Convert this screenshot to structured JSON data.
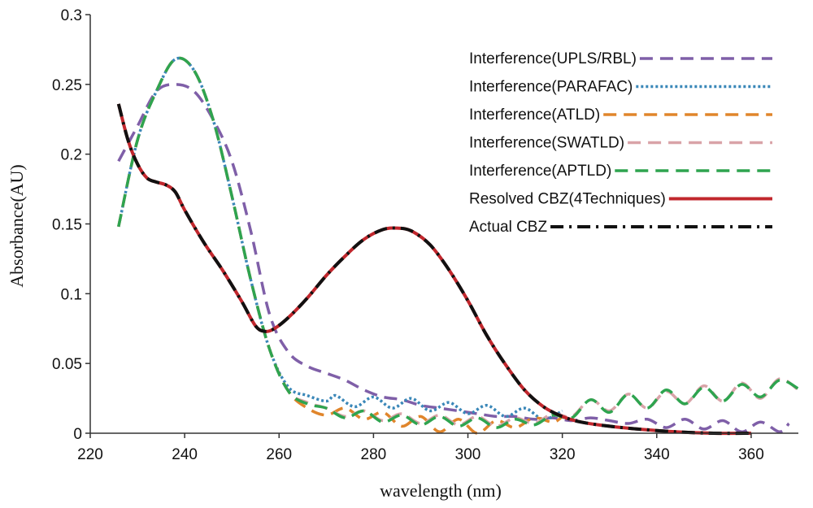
{
  "chart_data": {
    "type": "line",
    "title": "",
    "xlabel": "wavelength (nm)",
    "ylabel": "Absorbance(AU)",
    "xlim": [
      220,
      370
    ],
    "ylim": [
      0,
      0.3
    ],
    "xticks": [
      220,
      240,
      260,
      280,
      300,
      320,
      340,
      360
    ],
    "yticks": [
      0,
      0.05,
      0.1,
      0.15,
      0.2,
      0.25,
      0.3
    ],
    "xtick_labels": [
      "220",
      "240",
      "260",
      "280",
      "300",
      "320",
      "340",
      "360"
    ],
    "ytick_labels": [
      "0",
      "0.05",
      "0.1",
      "0.15",
      "0.2",
      "0.25",
      "0.3"
    ],
    "grid": false,
    "legend_position": "top-right",
    "series": [
      {
        "name": "Interference(UPLS/RBL)",
        "color": "#7f5fa8",
        "dash": "dashed",
        "points": [
          [
            226,
            0.195
          ],
          [
            230,
            0.22
          ],
          [
            234,
            0.245
          ],
          [
            238,
            0.25
          ],
          [
            242,
            0.245
          ],
          [
            246,
            0.225
          ],
          [
            250,
            0.195
          ],
          [
            254,
            0.145
          ],
          [
            258,
            0.085
          ],
          [
            262,
            0.058
          ],
          [
            266,
            0.048
          ],
          [
            270,
            0.043
          ],
          [
            274,
            0.038
          ],
          [
            278,
            0.031
          ],
          [
            282,
            0.026
          ],
          [
            286,
            0.024
          ],
          [
            290,
            0.02
          ],
          [
            294,
            0.018
          ],
          [
            298,
            0.016
          ],
          [
            302,
            0.014
          ],
          [
            306,
            0.012
          ],
          [
            310,
            0.012
          ],
          [
            314,
            0.01
          ],
          [
            318,
            0.011
          ],
          [
            322,
            0.009
          ],
          [
            326,
            0.011
          ],
          [
            330,
            0.009
          ],
          [
            334,
            0.007
          ],
          [
            338,
            0.01
          ],
          [
            342,
            0.004
          ],
          [
            346,
            0.01
          ],
          [
            350,
            0.003
          ],
          [
            354,
            0.009
          ],
          [
            358,
            0.001
          ],
          [
            362,
            0.008
          ],
          [
            366,
            0.001
          ],
          [
            368,
            0.007
          ]
        ]
      },
      {
        "name": "Interference(PARAFAC)",
        "color": "#3a87b8",
        "dash": "dotted",
        "points": [
          [
            226,
            0.148
          ],
          [
            230,
            0.21
          ],
          [
            234,
            0.245
          ],
          [
            238,
            0.268
          ],
          [
            242,
            0.26
          ],
          [
            246,
            0.225
          ],
          [
            250,
            0.17
          ],
          [
            254,
            0.11
          ],
          [
            258,
            0.06
          ],
          [
            262,
            0.033
          ],
          [
            266,
            0.027
          ],
          [
            270,
            0.023
          ],
          [
            272,
            0.027
          ],
          [
            276,
            0.019
          ],
          [
            280,
            0.026
          ],
          [
            284,
            0.018
          ],
          [
            288,
            0.025
          ],
          [
            292,
            0.016
          ],
          [
            296,
            0.022
          ],
          [
            300,
            0.014
          ],
          [
            304,
            0.02
          ],
          [
            308,
            0.012
          ],
          [
            312,
            0.018
          ],
          [
            316,
            0.01
          ],
          [
            320,
            0.016
          ]
        ]
      },
      {
        "name": "Interference(ATLD)",
        "color": "#e0852b",
        "dash": "dashed",
        "points": [
          [
            226,
            0.148
          ],
          [
            230,
            0.21
          ],
          [
            234,
            0.245
          ],
          [
            238,
            0.268
          ],
          [
            242,
            0.26
          ],
          [
            246,
            0.225
          ],
          [
            250,
            0.17
          ],
          [
            254,
            0.11
          ],
          [
            258,
            0.06
          ],
          [
            262,
            0.03
          ],
          [
            266,
            0.018
          ],
          [
            270,
            0.013
          ],
          [
            274,
            0.018
          ],
          [
            278,
            0.01
          ],
          [
            282,
            0.015
          ],
          [
            286,
            0.005
          ],
          [
            290,
            0.012
          ],
          [
            294,
            0.001
          ],
          [
            298,
            0.01
          ],
          [
            302,
            0.0
          ],
          [
            306,
            0.009
          ],
          [
            310,
            0.004
          ],
          [
            314,
            0.011
          ],
          [
            318,
            0.008
          ],
          [
            320,
            0.012
          ]
        ]
      },
      {
        "name": "Interference(SWATLD)",
        "color": "#d9a3a8",
        "dash": "dashed",
        "points": [
          [
            226,
            0.148
          ],
          [
            230,
            0.21
          ],
          [
            234,
            0.245
          ],
          [
            238,
            0.268
          ],
          [
            242,
            0.26
          ],
          [
            246,
            0.225
          ],
          [
            250,
            0.17
          ],
          [
            254,
            0.11
          ],
          [
            258,
            0.06
          ],
          [
            262,
            0.03
          ],
          [
            266,
            0.022
          ],
          [
            270,
            0.018
          ],
          [
            274,
            0.012
          ],
          [
            278,
            0.016
          ],
          [
            282,
            0.009
          ],
          [
            286,
            0.014
          ],
          [
            290,
            0.007
          ],
          [
            294,
            0.013
          ],
          [
            298,
            0.006
          ],
          [
            302,
            0.012
          ],
          [
            306,
            0.005
          ],
          [
            310,
            0.011
          ],
          [
            314,
            0.007
          ],
          [
            318,
            0.014
          ],
          [
            322,
            0.012
          ],
          [
            326,
            0.024
          ],
          [
            330,
            0.016
          ],
          [
            334,
            0.028
          ],
          [
            338,
            0.018
          ],
          [
            342,
            0.03
          ],
          [
            346,
            0.021
          ],
          [
            350,
            0.034
          ],
          [
            354,
            0.023
          ],
          [
            358,
            0.036
          ],
          [
            362,
            0.025
          ],
          [
            366,
            0.039
          ],
          [
            370,
            0.031
          ]
        ]
      },
      {
        "name": "Interference(APTLD)",
        "color": "#2ea44f",
        "dash": "dashed",
        "points": [
          [
            226,
            0.148
          ],
          [
            230,
            0.21
          ],
          [
            234,
            0.245
          ],
          [
            238,
            0.268
          ],
          [
            242,
            0.26
          ],
          [
            246,
            0.225
          ],
          [
            250,
            0.17
          ],
          [
            254,
            0.11
          ],
          [
            258,
            0.06
          ],
          [
            262,
            0.03
          ],
          [
            266,
            0.021
          ],
          [
            270,
            0.018
          ],
          [
            274,
            0.011
          ],
          [
            278,
            0.016
          ],
          [
            282,
            0.008
          ],
          [
            286,
            0.013
          ],
          [
            290,
            0.006
          ],
          [
            294,
            0.012
          ],
          [
            298,
            0.005
          ],
          [
            302,
            0.011
          ],
          [
            306,
            0.004
          ],
          [
            310,
            0.01
          ],
          [
            314,
            0.006
          ],
          [
            318,
            0.013
          ],
          [
            322,
            0.011
          ],
          [
            326,
            0.024
          ],
          [
            330,
            0.015
          ],
          [
            334,
            0.028
          ],
          [
            338,
            0.018
          ],
          [
            342,
            0.031
          ],
          [
            346,
            0.021
          ],
          [
            350,
            0.033
          ],
          [
            354,
            0.023
          ],
          [
            358,
            0.035
          ],
          [
            362,
            0.026
          ],
          [
            366,
            0.038
          ],
          [
            370,
            0.032
          ]
        ]
      },
      {
        "name": "Resolved CBZ(4Techniques)",
        "color": "#c1272d",
        "dash": "solid",
        "points": [
          [
            226,
            0.236
          ],
          [
            228,
            0.21
          ],
          [
            230,
            0.193
          ],
          [
            232,
            0.183
          ],
          [
            234,
            0.18
          ],
          [
            236,
            0.178
          ],
          [
            238,
            0.173
          ],
          [
            240,
            0.16
          ],
          [
            244,
            0.137
          ],
          [
            248,
            0.117
          ],
          [
            252,
            0.095
          ],
          [
            255,
            0.077
          ],
          [
            257,
            0.073
          ],
          [
            259,
            0.075
          ],
          [
            262,
            0.083
          ],
          [
            266,
            0.097
          ],
          [
            270,
            0.113
          ],
          [
            274,
            0.127
          ],
          [
            278,
            0.139
          ],
          [
            282,
            0.146
          ],
          [
            285,
            0.147
          ],
          [
            288,
            0.145
          ],
          [
            292,
            0.135
          ],
          [
            296,
            0.117
          ],
          [
            300,
            0.095
          ],
          [
            304,
            0.07
          ],
          [
            308,
            0.049
          ],
          [
            312,
            0.031
          ],
          [
            316,
            0.019
          ],
          [
            320,
            0.012
          ],
          [
            324,
            0.008
          ],
          [
            330,
            0.005
          ],
          [
            336,
            0.003
          ],
          [
            344,
            0.001
          ],
          [
            352,
            0.0
          ],
          [
            360,
            0.0
          ]
        ]
      },
      {
        "name": "Actual CBZ",
        "color": "#111111",
        "dash": "dashdot",
        "points": [
          [
            226,
            0.236
          ],
          [
            228,
            0.21
          ],
          [
            230,
            0.193
          ],
          [
            232,
            0.183
          ],
          [
            234,
            0.18
          ],
          [
            236,
            0.178
          ],
          [
            238,
            0.173
          ],
          [
            240,
            0.16
          ],
          [
            244,
            0.137
          ],
          [
            248,
            0.117
          ],
          [
            252,
            0.095
          ],
          [
            255,
            0.077
          ],
          [
            257,
            0.073
          ],
          [
            259,
            0.075
          ],
          [
            262,
            0.083
          ],
          [
            266,
            0.097
          ],
          [
            270,
            0.113
          ],
          [
            274,
            0.127
          ],
          [
            278,
            0.139
          ],
          [
            282,
            0.146
          ],
          [
            285,
            0.147
          ],
          [
            288,
            0.145
          ],
          [
            292,
            0.135
          ],
          [
            296,
            0.117
          ],
          [
            300,
            0.095
          ],
          [
            304,
            0.07
          ],
          [
            308,
            0.049
          ],
          [
            312,
            0.031
          ],
          [
            316,
            0.019
          ],
          [
            320,
            0.012
          ],
          [
            324,
            0.008
          ],
          [
            330,
            0.005
          ],
          [
            336,
            0.003
          ],
          [
            344,
            0.001
          ],
          [
            352,
            0.0
          ],
          [
            360,
            0.0
          ]
        ]
      }
    ]
  }
}
